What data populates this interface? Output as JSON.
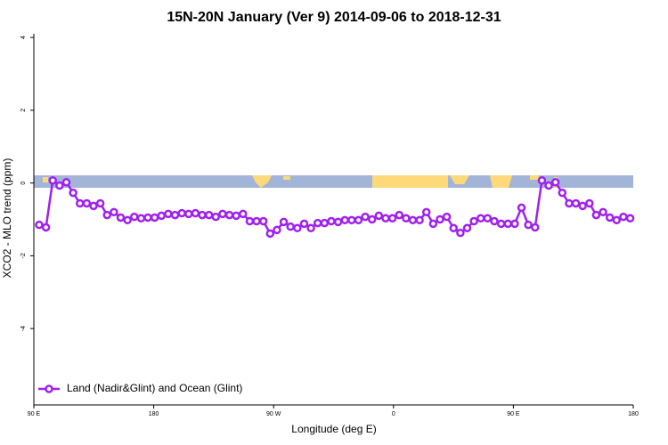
{
  "chart_data": {
    "type": "line",
    "title": "15N-20N January (Ver 9)   2014-09-06 to 2018-12-31",
    "x_label": "Longitude (deg E)",
    "y_label": "XCO2 - MLO trend (ppm)",
    "xlim": [
      90,
      540
    ],
    "ylim": [
      -6.1,
      4.1
    ],
    "xticks": [
      {
        "value": 90,
        "label": "90 E"
      },
      180,
      {
        "value": 270,
        "label": "90 W"
      },
      {
        "value": 360,
        "label": "0"
      },
      {
        "value": 450,
        "label": "90 E"
      },
      {
        "value": 540,
        "label": "180"
      }
    ],
    "yticks": [
      4,
      2,
      0,
      -2,
      -4
    ],
    "legend": "bottom-left",
    "x": [
      94,
      99.1,
      104.2,
      109.3,
      114.4,
      119.5,
      124.6,
      129.7,
      134.8,
      139.9,
      145,
      150.1,
      155.2,
      160.3,
      165.4,
      170.5,
      175.6,
      180.7,
      185.8,
      190.9,
      196,
      201.1,
      206.2,
      211.3,
      216.4,
      221.5,
      226.6,
      231.7,
      236.8,
      241.9,
      247,
      252.1,
      257.2,
      262.3,
      267.4,
      272.5,
      277.6,
      282.7,
      287.8,
      292.9,
      298,
      303.1,
      308.2,
      313.3,
      318.4,
      323.5,
      328.6,
      333.7,
      338.8,
      343.9,
      349,
      354.1,
      359.2,
      364.3,
      369.4,
      374.5,
      379.6,
      384.7,
      389.8,
      394.9,
      400,
      405.1,
      410.2,
      415.3,
      420.4,
      425.5,
      430.6,
      435.7,
      440.8,
      445.9,
      451,
      456.1,
      461.2,
      466.3,
      471.4,
      476.5,
      481.6,
      486.7,
      491.8,
      496.9,
      502,
      507.1,
      512.2,
      517.3,
      522.4,
      527.5,
      532.6,
      537.7
    ],
    "series": [
      {
        "name": "Land (Nadir&Glint) and Ocean (Glint)",
        "color": "#a020f0",
        "values": [
          -1.15,
          -1.22,
          0.07,
          -0.07,
          0.02,
          -0.27,
          -0.56,
          -0.56,
          -0.63,
          -0.56,
          -0.88,
          -0.8,
          -0.95,
          -1.02,
          -0.93,
          -0.97,
          -0.95,
          -0.95,
          -0.9,
          -0.85,
          -0.88,
          -0.83,
          -0.85,
          -0.83,
          -0.88,
          -0.88,
          -0.93,
          -0.85,
          -0.88,
          -0.9,
          -0.85,
          -1.05,
          -1.05,
          -1.05,
          -1.39,
          -1.29,
          -1.07,
          -1.2,
          -1.24,
          -1.12,
          -1.24,
          -1.1,
          -1.1,
          -1.05,
          -1.07,
          -1.02,
          -1.02,
          -1.02,
          -0.93,
          -1.0,
          -0.9,
          -0.97,
          -0.97,
          -0.88,
          -0.97,
          -1.02,
          -1.02,
          -0.8,
          -1.12,
          -1.0,
          -0.93,
          -1.24,
          -1.37,
          -1.24,
          -1.05,
          -0.97,
          -0.97,
          -1.05,
          -1.12,
          -1.12,
          -1.12,
          -0.68,
          -1.15,
          -1.22,
          0.07,
          -0.07,
          0.02,
          -0.27,
          -0.56,
          -0.56,
          -0.63,
          -0.56,
          -0.88,
          -0.8,
          -0.95,
          -1.02,
          -0.93,
          -0.97
        ]
      }
    ]
  }
}
